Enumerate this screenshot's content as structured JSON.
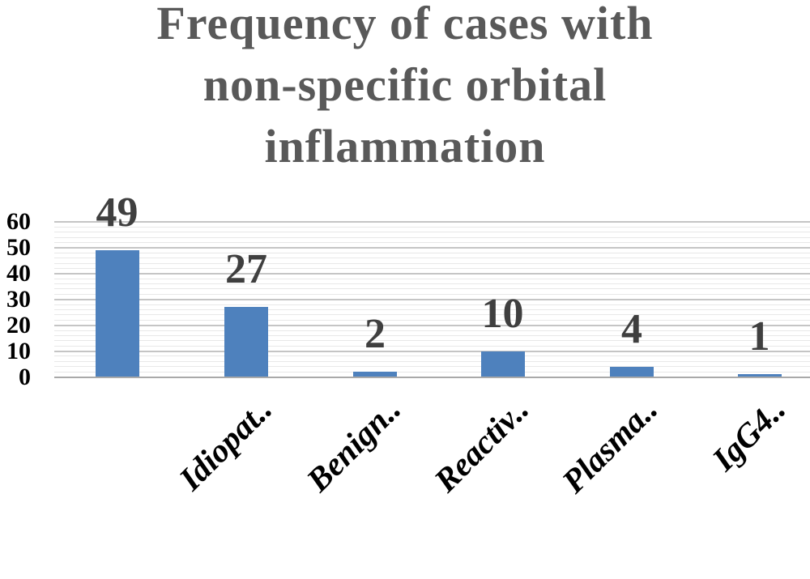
{
  "chart_data": {
    "type": "bar",
    "title": "Frequency of cases with non-specific orbital inflammation",
    "title_lines": [
      "Frequency of cases with",
      "non-specific orbital",
      "inflammation"
    ],
    "categories": [
      "",
      "Idiopat..",
      "Benign..",
      "Reactiv..",
      "Plasma..",
      "IgG4.."
    ],
    "values": [
      49,
      27,
      2,
      10,
      4,
      1
    ],
    "data_labels": [
      "49",
      "27",
      "2",
      "10",
      "4",
      "1"
    ],
    "y_ticks": [
      "0",
      "10",
      "20",
      "30",
      "40",
      "50",
      "60"
    ],
    "ylim": [
      0,
      60
    ],
    "major_unit": 10,
    "minor_unit": 2,
    "grid": "horizontal, minor and major",
    "legend": "none",
    "colors": {
      "bar": "#4e81bd",
      "title_text": "#595959",
      "data_label_text": "#3f3f3f",
      "tick_label_text": "#000000",
      "major_grid": "#c5c5c5",
      "minor_grid": "#e8e8e8",
      "axis_line": "#a9a9a9",
      "background": "#ffffff"
    }
  }
}
